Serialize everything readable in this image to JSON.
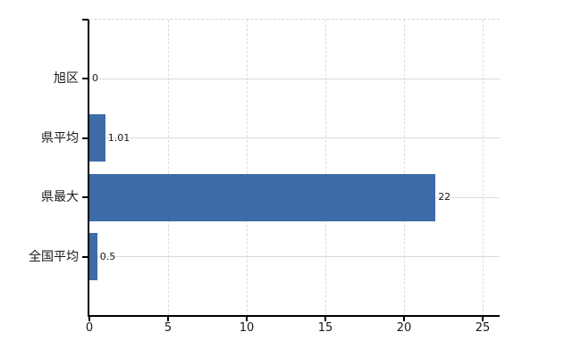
{
  "chart_data": {
    "type": "bar",
    "orientation": "horizontal",
    "title": "",
    "xlabel": "",
    "ylabel": "",
    "categories": [
      "旭区",
      "県平均",
      "県最大",
      "全国平均"
    ],
    "values": [
      0,
      1.01,
      22,
      0.5
    ],
    "value_labels": [
      "0",
      "1.01",
      "22",
      "0.5"
    ],
    "x_ticks": [
      "0",
      "5",
      "10",
      "15",
      "20",
      "25"
    ],
    "x_tick_values": [
      0,
      5,
      10,
      15,
      20,
      25
    ],
    "xlim": [
      0,
      26.1
    ],
    "bar_color": "#3d6ca8",
    "grid": true,
    "grid_color": "#dcdcdc",
    "axis_color": "#000000",
    "background_color": "#ffffff",
    "legend": false
  }
}
